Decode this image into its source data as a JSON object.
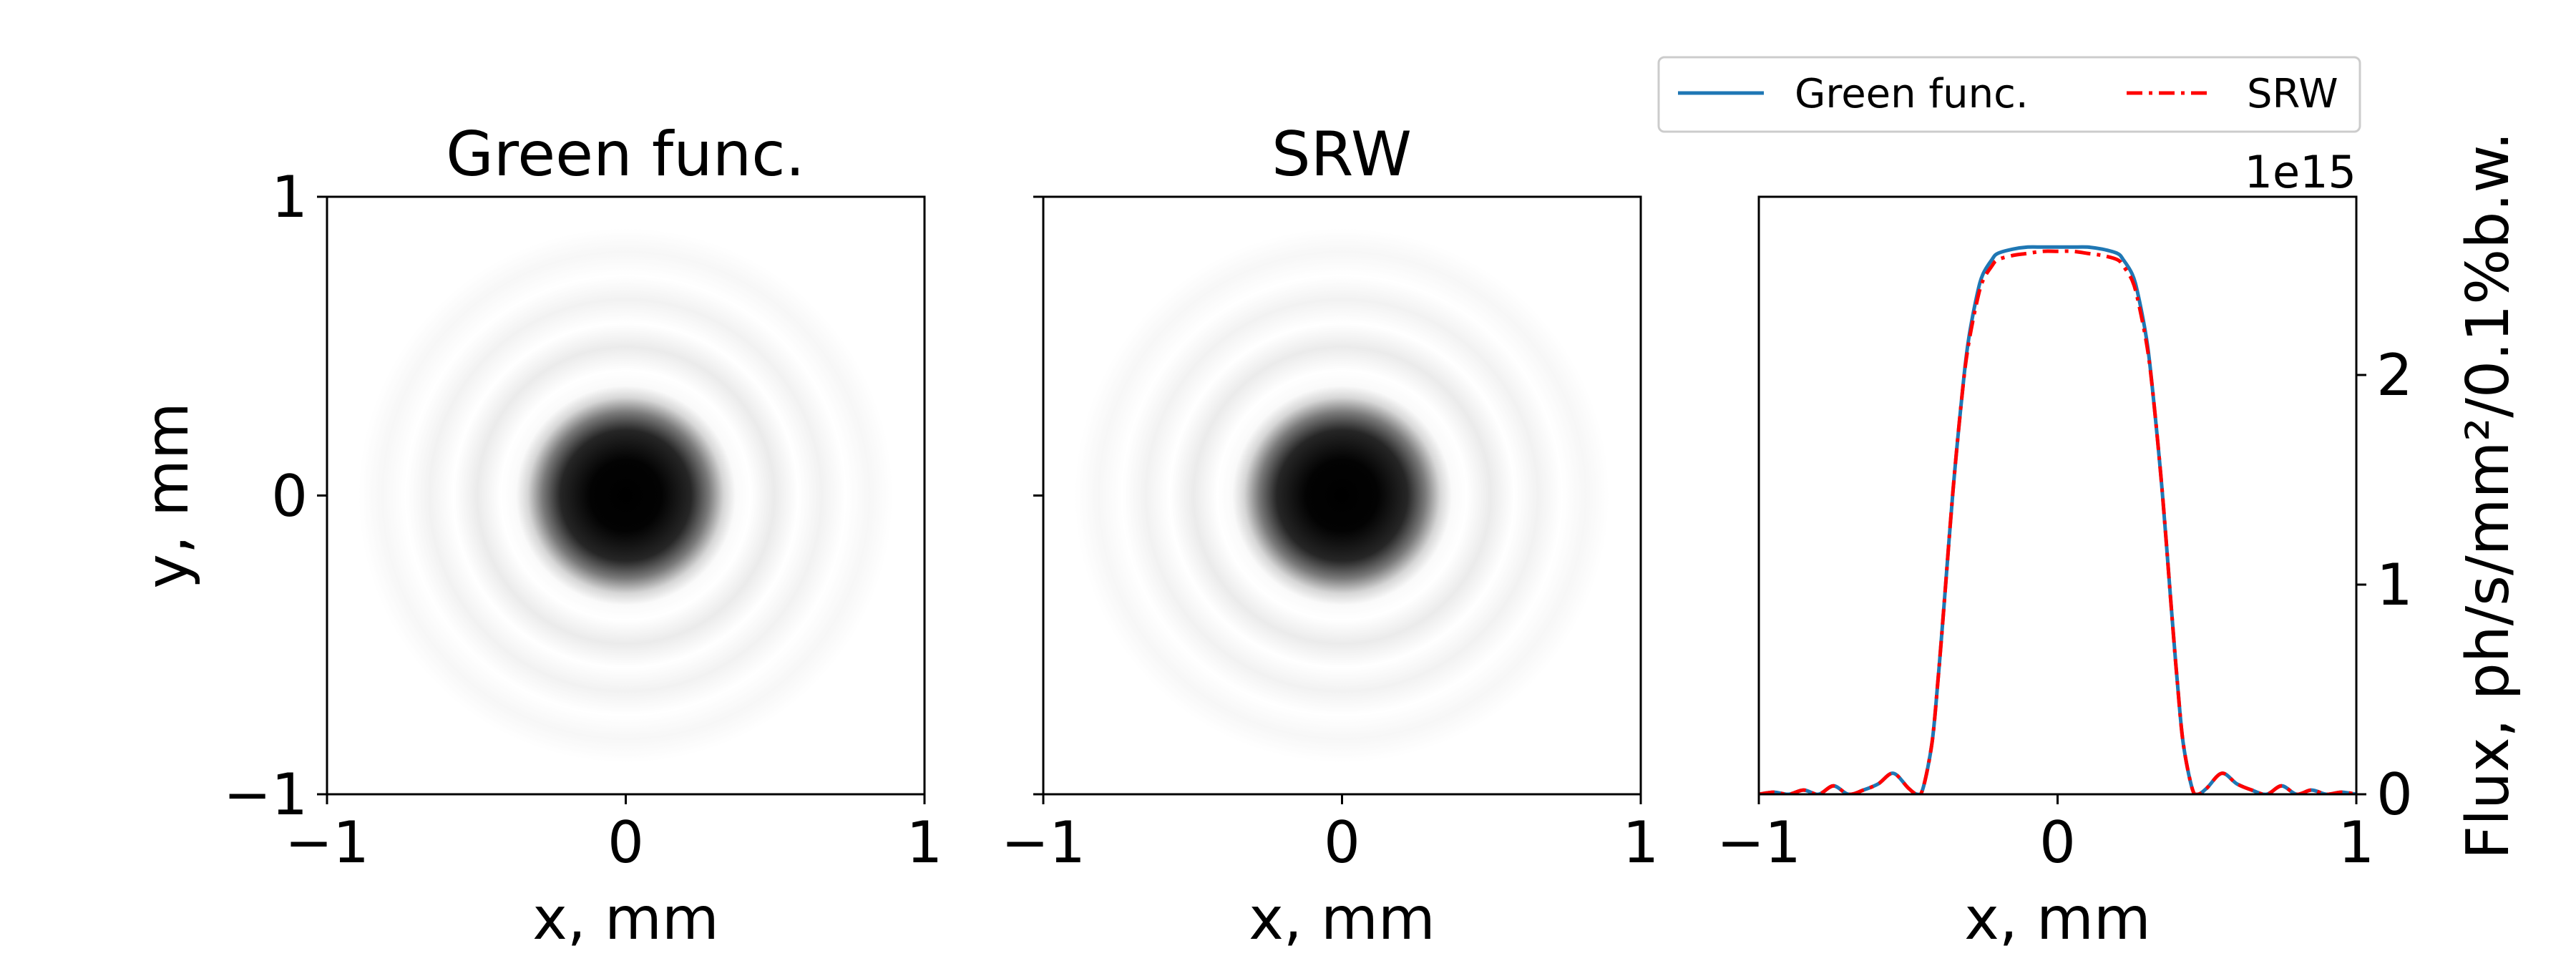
{
  "chart_data": [
    {
      "type": "heatmap",
      "title": "Green func.",
      "xlabel": "x, mm",
      "ylabel": "y, mm",
      "xlim": [
        -1,
        1
      ],
      "ylim": [
        -1,
        1
      ],
      "xticks": [
        "−1",
        "0",
        "1"
      ],
      "yticks": [
        "−1",
        "0",
        "1"
      ],
      "colormap": "grayscale, dark = high intensity",
      "pattern": "Airy-like disk centered at (0, 0) with faint concentric rings"
    },
    {
      "type": "heatmap",
      "title": "SRW",
      "xlabel": "x, mm",
      "xlim": [
        -1,
        1
      ],
      "ylim": [
        -1,
        1
      ],
      "xticks": [
        "−1",
        "0",
        "1"
      ],
      "colormap": "grayscale, dark = high intensity",
      "pattern": "Airy-like disk centered at (0, 0) with faint concentric rings"
    },
    {
      "type": "line",
      "xlabel": "x, mm",
      "ylabel": "Flux, ph/s/mm²/0.1%b.w.",
      "scale_label": "1e15",
      "xlim": [
        -1,
        1
      ],
      "ylim": [
        0,
        2.85
      ],
      "xticks": [
        "−1",
        "0",
        "1"
      ],
      "yticks": [
        "0",
        "1",
        "2"
      ],
      "legend_position": "top",
      "series": [
        {
          "name": "Green func.",
          "color": "#1f77b4",
          "style": "solid",
          "x": [
            -1.0,
            -0.95,
            -0.9,
            -0.85,
            -0.8,
            -0.75,
            -0.7,
            -0.65,
            -0.6,
            -0.55,
            -0.5,
            -0.47,
            -0.45,
            -0.42,
            -0.4,
            -0.38,
            -0.35,
            -0.32,
            -0.3,
            -0.27,
            -0.25,
            -0.22,
            -0.2,
            -0.15,
            -0.1,
            -0.05,
            0.0,
            0.05,
            0.1,
            0.15,
            0.2,
            0.22,
            0.25,
            0.27,
            0.3,
            0.32,
            0.35,
            0.38,
            0.4,
            0.42,
            0.45,
            0.47,
            0.5,
            0.55,
            0.6,
            0.65,
            0.7,
            0.75,
            0.8,
            0.85,
            0.9,
            0.95,
            1.0
          ],
          "y": [
            0.0,
            0.01,
            0.0,
            0.02,
            0.0,
            0.04,
            0.0,
            0.02,
            0.05,
            0.1,
            0.03,
            0.0,
            0.03,
            0.25,
            0.55,
            0.9,
            1.45,
            1.9,
            2.15,
            2.38,
            2.48,
            2.55,
            2.58,
            2.6,
            2.61,
            2.61,
            2.61,
            2.61,
            2.61,
            2.6,
            2.58,
            2.55,
            2.48,
            2.38,
            2.15,
            1.9,
            1.45,
            0.9,
            0.55,
            0.25,
            0.03,
            0.0,
            0.03,
            0.1,
            0.05,
            0.02,
            0.0,
            0.04,
            0.0,
            0.02,
            0.0,
            0.01,
            0.0
          ]
        },
        {
          "name": "SRW",
          "color": "#ff0000",
          "style": "dash-dot",
          "x": [
            -1.0,
            -0.95,
            -0.9,
            -0.85,
            -0.8,
            -0.75,
            -0.7,
            -0.65,
            -0.6,
            -0.55,
            -0.5,
            -0.47,
            -0.45,
            -0.42,
            -0.4,
            -0.38,
            -0.35,
            -0.32,
            -0.3,
            -0.27,
            -0.25,
            -0.22,
            -0.2,
            -0.15,
            -0.1,
            -0.05,
            0.0,
            0.05,
            0.1,
            0.15,
            0.2,
            0.22,
            0.25,
            0.27,
            0.3,
            0.32,
            0.35,
            0.38,
            0.4,
            0.42,
            0.45,
            0.47,
            0.5,
            0.55,
            0.6,
            0.65,
            0.7,
            0.75,
            0.8,
            0.85,
            0.9,
            0.95,
            1.0
          ],
          "y": [
            0.0,
            0.01,
            0.0,
            0.02,
            0.0,
            0.04,
            0.0,
            0.02,
            0.05,
            0.1,
            0.03,
            0.0,
            0.03,
            0.25,
            0.55,
            0.9,
            1.45,
            1.9,
            2.13,
            2.35,
            2.45,
            2.52,
            2.55,
            2.57,
            2.58,
            2.59,
            2.59,
            2.59,
            2.58,
            2.57,
            2.55,
            2.52,
            2.45,
            2.35,
            2.13,
            1.9,
            1.45,
            0.9,
            0.55,
            0.25,
            0.03,
            0.0,
            0.03,
            0.1,
            0.05,
            0.02,
            0.0,
            0.04,
            0.0,
            0.02,
            0.0,
            0.01,
            0.0
          ]
        }
      ]
    }
  ]
}
